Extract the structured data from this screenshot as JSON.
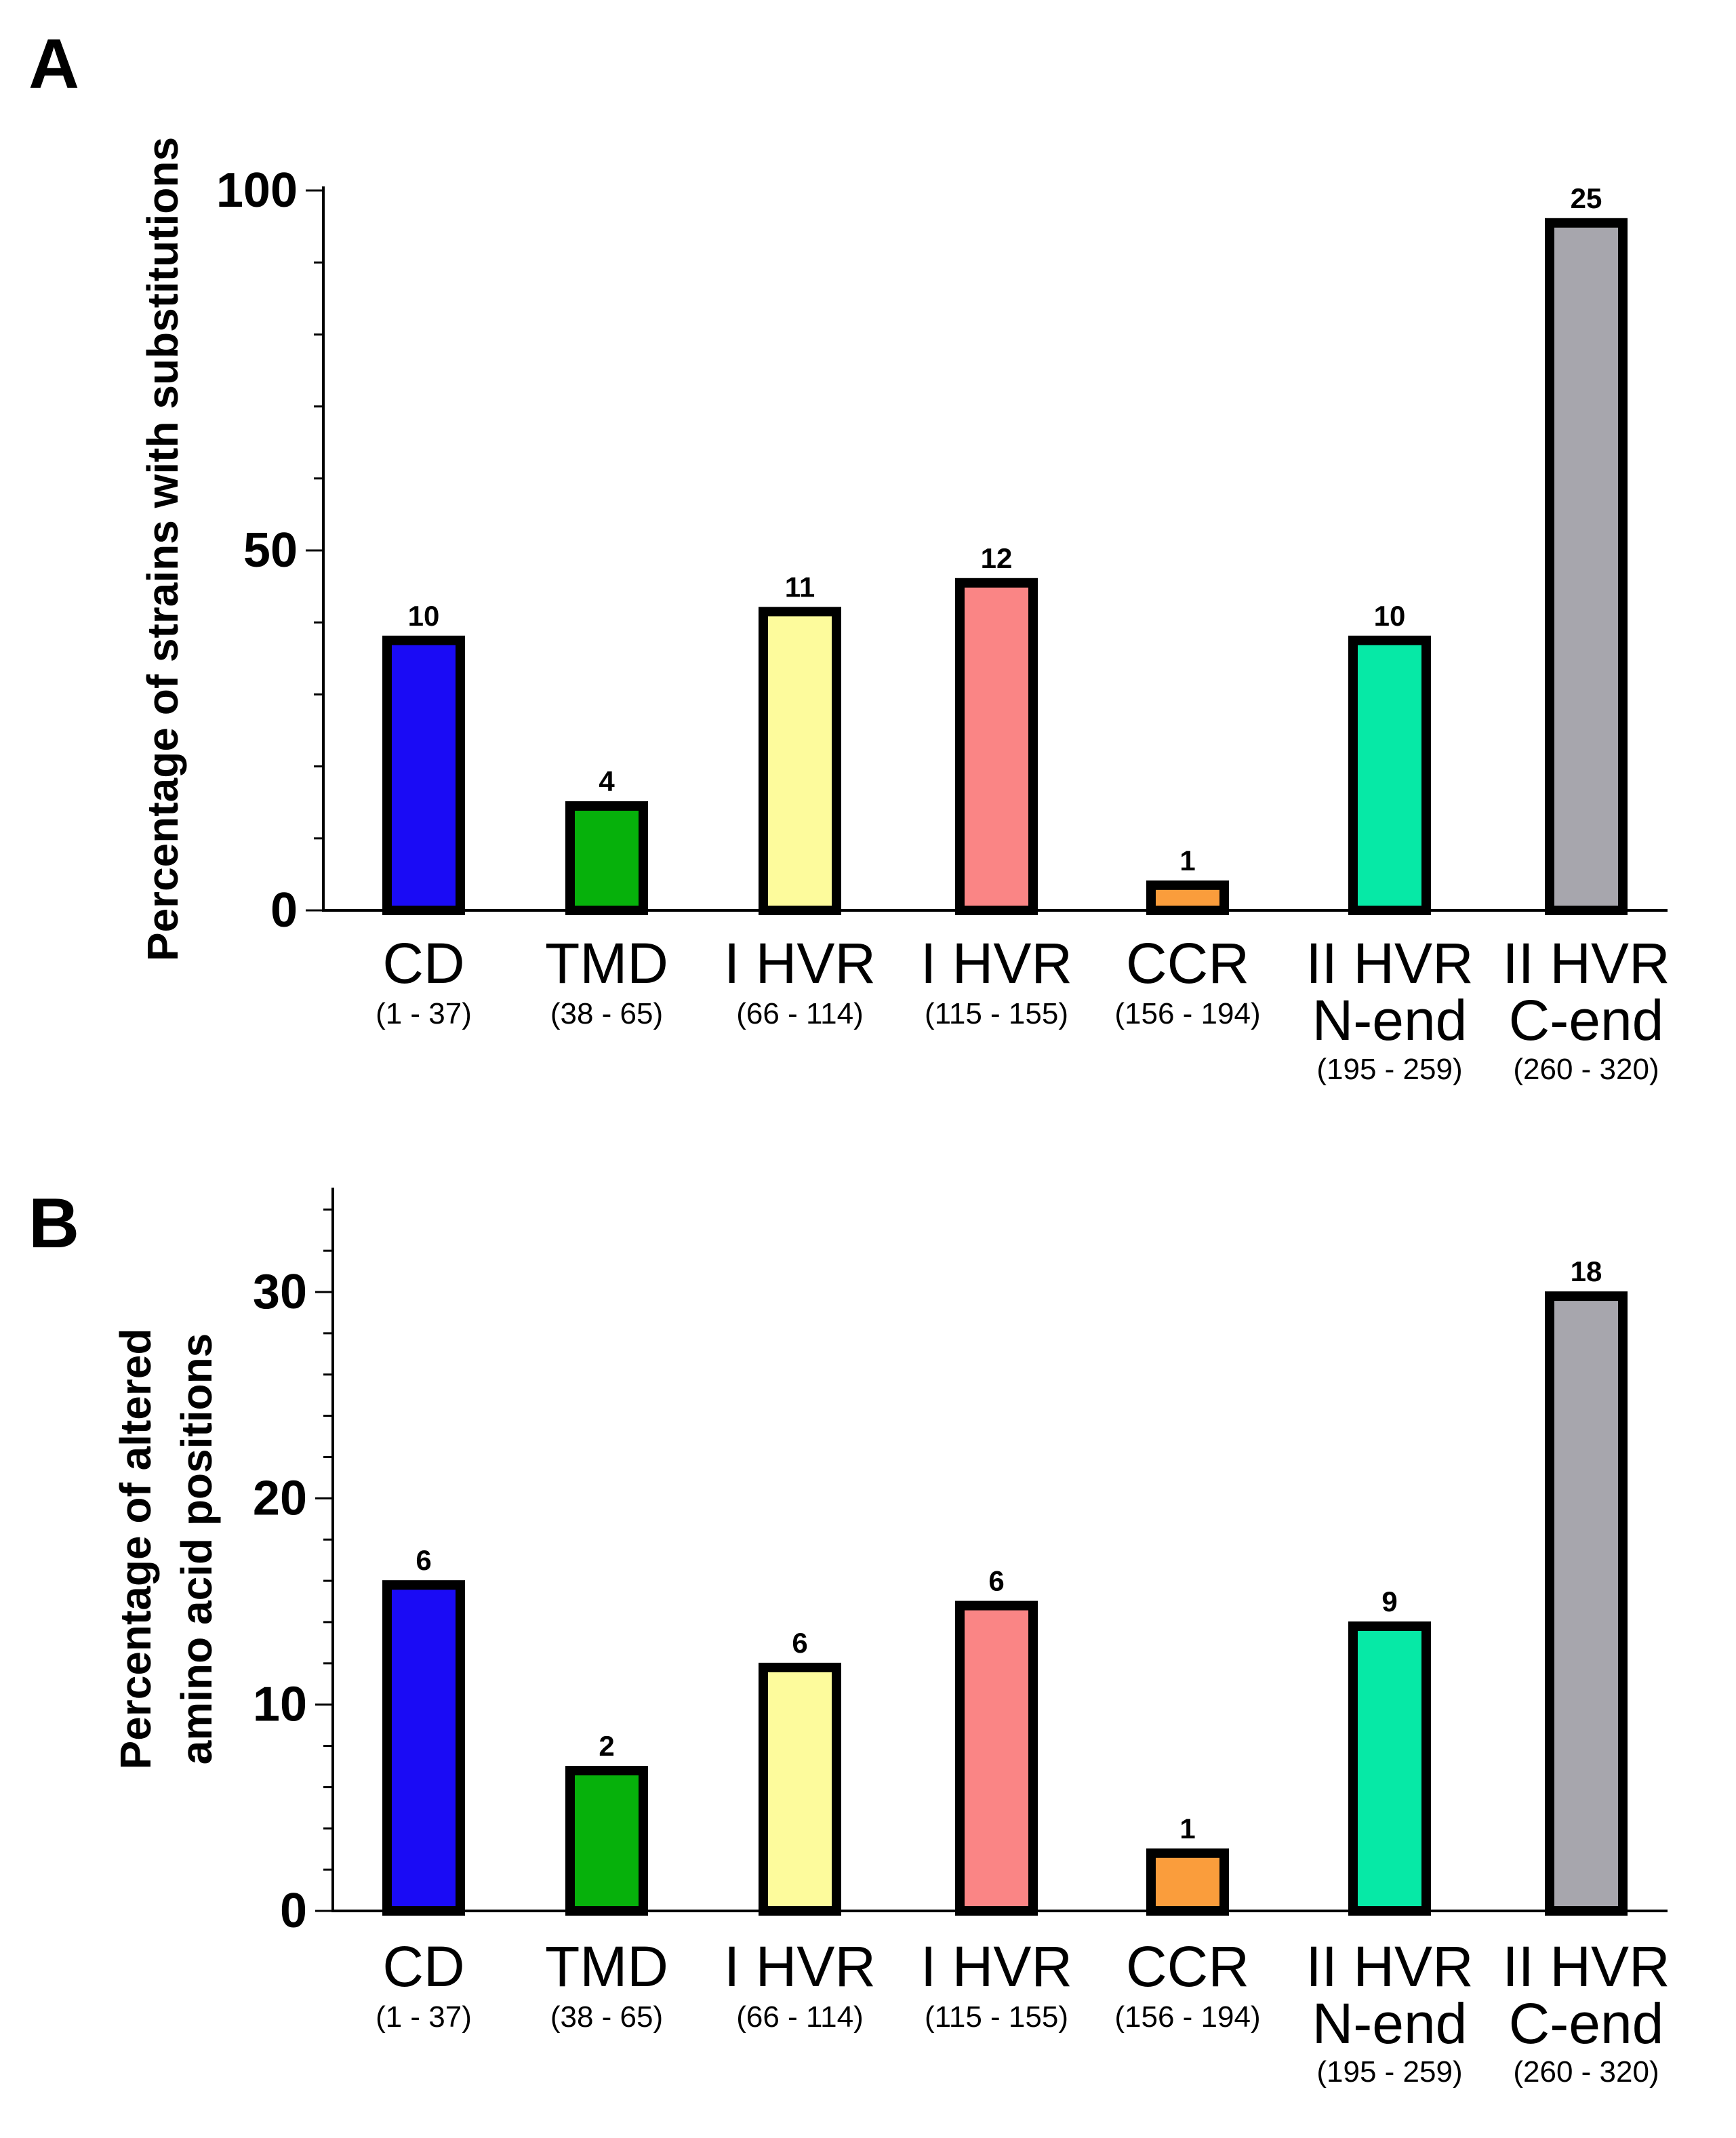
{
  "colors": [
    "#1a0bf5",
    "#06b10b",
    "#fdfb9c",
    "#fa8585",
    "#fa9d3c",
    "#06e9a6",
    "#a7a6ad"
  ],
  "categories": [
    {
      "lines": [
        "CD"
      ],
      "range": "(1 - 37)"
    },
    {
      "lines": [
        "TMD"
      ],
      "range": "(38 - 65)"
    },
    {
      "lines": [
        "I HVR"
      ],
      "range": "(66 - 114)"
    },
    {
      "lines": [
        "I HVR"
      ],
      "range": "(115 - 155)"
    },
    {
      "lines": [
        "CCR"
      ],
      "range": "(156 - 194)"
    },
    {
      "lines": [
        "II HVR",
        "N-end"
      ],
      "range": "(195 - 259)"
    },
    {
      "lines": [
        "II HVR",
        "C-end"
      ],
      "range": "(260 - 320)"
    }
  ],
  "chart_data": [
    {
      "type": "bar",
      "panel": "A",
      "title": "",
      "xlabel": "",
      "ylabel": "Percentage of strains with substitutions",
      "ylim": [
        0,
        100
      ],
      "yticks": [
        0,
        50,
        100
      ],
      "categories": [
        "CD (1 - 37)",
        "TMD (38 - 65)",
        "I HVR (66 - 114)",
        "I HVR (115 - 155)",
        "CCR (156 - 194)",
        "II HVR N-end (195 - 259)",
        "II HVR C-end (260 - 320)"
      ],
      "values": [
        37.5,
        14.5,
        41.5,
        45.5,
        3.5,
        37.5,
        95.5
      ],
      "data_labels": [
        "10",
        "4",
        "11",
        "12",
        "1",
        "10",
        "25"
      ]
    },
    {
      "type": "bar",
      "panel": "B",
      "title": "",
      "xlabel": "",
      "ylabel": "Percentage of altered amino acid positions",
      "ylim": [
        0,
        35
      ],
      "yticks": [
        0,
        10,
        20,
        30
      ],
      "categories": [
        "CD (1 - 37)",
        "TMD (38 - 65)",
        "I HVR (66 - 114)",
        "I HVR (115 - 155)",
        "CCR (156 - 194)",
        "II HVR N-end (195 - 259)",
        "II HVR C-end (260 - 320)"
      ],
      "values": [
        15.8,
        6.8,
        11.8,
        14.8,
        2.8,
        13.8,
        29.8
      ],
      "data_labels": [
        "6",
        "2",
        "6",
        "6",
        "1",
        "9",
        "18"
      ]
    }
  ]
}
